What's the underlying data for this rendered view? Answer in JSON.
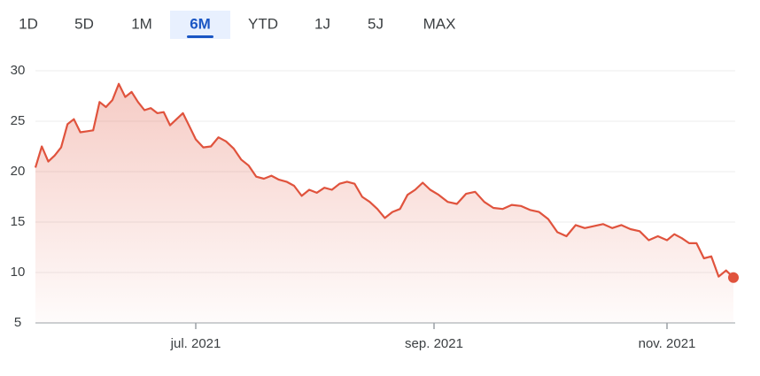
{
  "tabs": [
    "1D",
    "5D",
    "1M",
    "6M",
    "YTD",
    "1J",
    "5J",
    "MAX"
  ],
  "selected_tab_index": 3,
  "chart_data": {
    "type": "line",
    "color": "#e0533d",
    "values": [
      20.4,
      22.5,
      21,
      21.6,
      22.4,
      24.7,
      25.2,
      23.9,
      24,
      24.1,
      26.9,
      26.4,
      27.1,
      28.7,
      27.4,
      27.9,
      26.9,
      26.1,
      26.3,
      25.8,
      25.9,
      24.6,
      25.2,
      25.8,
      24.5,
      23.2,
      22.4,
      22.5,
      23.4,
      23,
      22.3,
      21.2,
      20.6,
      19.5,
      19.3,
      19.6,
      19.2,
      19,
      18.6,
      17.6,
      18.2,
      17.9,
      18.4,
      18.2,
      18.8,
      19.0,
      18.8,
      17.5,
      17,
      16.3,
      15.4,
      16,
      16.3,
      17.7,
      18.2,
      18.9,
      18.2,
      17.7,
      17,
      16.8,
      17.8,
      18,
      17,
      16.4,
      16.3,
      16.7,
      16.6,
      16.2,
      16,
      15.3,
      14,
      13.6,
      14.7,
      14.4,
      14.6,
      14.8,
      14.4,
      14.7,
      14.3,
      14.1,
      13.2,
      13.6,
      13.2,
      13.8,
      13.4,
      12.9,
      12.9,
      11.4,
      11.6,
      9.6,
      10.2,
      9.5
    ],
    "xlim": [
      0,
      91
    ],
    "xticks": [
      {
        "value": 25,
        "label": "jul. 2021"
      },
      {
        "value": 56.5,
        "label": "sep. 2021"
      },
      {
        "value": 82,
        "label": "nov. 2021"
      }
    ],
    "ylim": [
      5,
      30
    ],
    "yticks": [
      5,
      10,
      15,
      20,
      25,
      30
    ],
    "grid": true,
    "end_marker": true
  }
}
